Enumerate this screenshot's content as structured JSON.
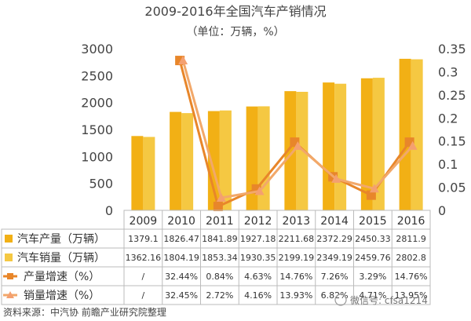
{
  "chart_data": {
    "type": "bar",
    "title": "2009-2016年全国汽车产销情况",
    "subtitle": "（单位：万辆，%）",
    "categories": [
      "2009",
      "2010",
      "2011",
      "2012",
      "2013",
      "2014",
      "2015",
      "2016"
    ],
    "y_left_ticks": [
      "0",
      "500",
      "1000",
      "1500",
      "2000",
      "2500",
      "3000"
    ],
    "y_left_range": [
      0,
      3000
    ],
    "y_right_ticks": [
      "0",
      "0.05",
      "0.1",
      "0.15",
      "0.2",
      "0.25",
      "0.3",
      "0.35"
    ],
    "y_right_range": [
      0,
      0.35
    ],
    "series": [
      {
        "name": "汽车产量（万辆）",
        "kind": "bar",
        "color": "#f2b015",
        "values": [
          1379.1,
          1826.47,
          1841.89,
          1927.18,
          2211.68,
          2372.29,
          2450.33,
          2811.9
        ],
        "labels": [
          "1379.1",
          "1826.47",
          "1841.89",
          "1927.18",
          "2211.68",
          "2372.29",
          "2450.33",
          "2811.9"
        ]
      },
      {
        "name": "汽车销量（万辆）",
        "kind": "bar",
        "color": "#f5c842",
        "values": [
          1362.16,
          1804.19,
          1853.34,
          1930.35,
          2199.19,
          2349.19,
          2459.76,
          2802.8
        ],
        "labels": [
          "1362.16",
          "1804.19",
          "1853.34",
          "1930.35",
          "2199.19",
          "2349.19",
          "2459.76",
          "2802.8"
        ]
      },
      {
        "name": "产量增速（%）",
        "kind": "line",
        "marker": "square",
        "color": "#e8862a",
        "values": [
          null,
          0.3244,
          0.0084,
          0.0463,
          0.1476,
          0.0726,
          0.0329,
          0.1476
        ],
        "labels": [
          "/",
          "32.44%",
          "0.84%",
          "4.63%",
          "14.76%",
          "7.26%",
          "3.29%",
          "14.76%"
        ]
      },
      {
        "name": "销量增速（%）",
        "kind": "line",
        "marker": "triangle",
        "color": "#f2a86a",
        "values": [
          null,
          0.3245,
          0.0272,
          0.0416,
          0.1393,
          0.0682,
          0.0471,
          0.1395
        ],
        "labels": [
          "/",
          "32.45%",
          "2.72%",
          "4.16%",
          "13.93%",
          "6.82%",
          "4.71%",
          "13.95%"
        ]
      }
    ]
  },
  "source": "资料来源：中汽协 前瞻产业研究院整理",
  "watermark": "微信号: cfsa1214"
}
